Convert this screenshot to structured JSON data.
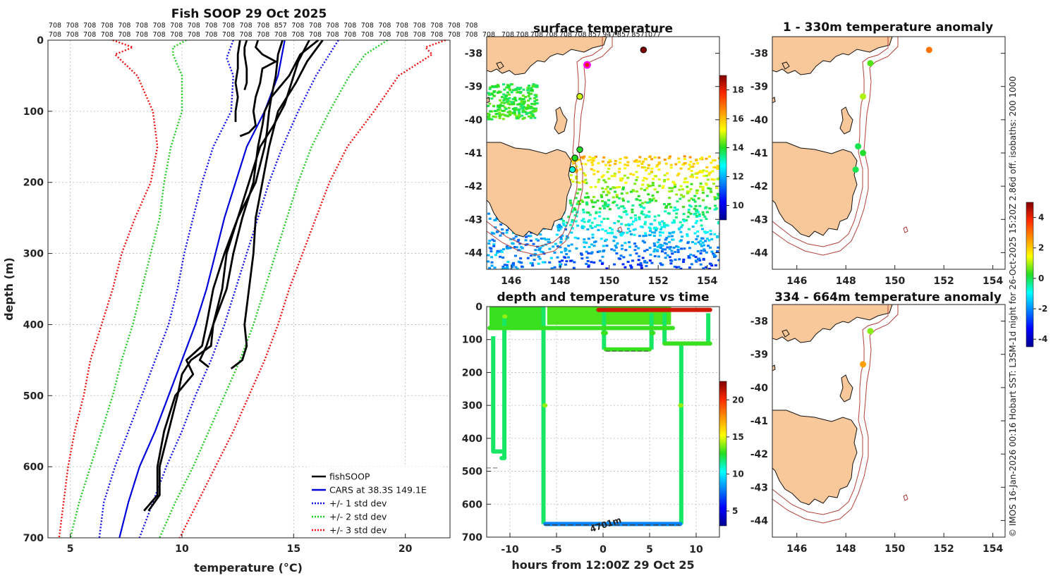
{
  "chart_data": [
    {
      "id": "profile",
      "type": "line",
      "title": "Fish SOOP 29 Oct 2025",
      "xlabel": "temperature (°C)",
      "ylabel": "depth (m)",
      "xlim": [
        4,
        22
      ],
      "ylim": [
        700,
        0
      ],
      "xticks": [
        "5",
        "10",
        "15",
        "20"
      ],
      "yticks": [
        "0",
        "100",
        "200",
        "300",
        "400",
        "500",
        "600",
        "700"
      ],
      "grid": true,
      "legend_location": "bottom-right",
      "legend": [
        "fishSOOP",
        "CARS at 38.3S 149.1E",
        "+/- 1 std dev",
        "+/- 2 std dev",
        "+/- 3 std dev"
      ],
      "id_labels_row1": [
        "708",
        "708",
        "708",
        "708",
        "708",
        "708",
        "708",
        "708",
        "708",
        "708",
        "708",
        "708",
        "708",
        "857",
        "708",
        "708",
        "708",
        "708",
        "708",
        "708",
        "708",
        "708",
        "708",
        "708",
        "708"
      ],
      "id_labels_row2": [
        "708",
        "708",
        "708",
        "708",
        "708",
        "708",
        "708",
        "708",
        "708",
        "708",
        "708",
        "708",
        "708",
        "708",
        "708",
        "708",
        "708",
        "708",
        "708",
        "708",
        "708",
        "708",
        "708",
        "708",
        "708",
        "708"
      ],
      "series": [
        {
          "name": "CARS at 38.3S 149.1E",
          "color": "#0000dd",
          "style": "solid",
          "depth": [
            0,
            50,
            100,
            150,
            200,
            250,
            300,
            350,
            400,
            450,
            500,
            550,
            600,
            650,
            700
          ],
          "temp": [
            14.6,
            14.3,
            13.7,
            12.9,
            12.4,
            11.9,
            11.5,
            11.1,
            10.6,
            10.0,
            9.4,
            8.8,
            8.1,
            7.6,
            7.2
          ]
        },
        {
          "name": "+1 std dev",
          "color": "#1010ee",
          "style": "dot",
          "depth": [
            0,
            50,
            100,
            150,
            200,
            250,
            300,
            350,
            400,
            450,
            500,
            550,
            600,
            650,
            700
          ],
          "temp": [
            17.0,
            16.0,
            15.2,
            14.5,
            13.9,
            13.4,
            12.9,
            12.4,
            11.9,
            11.3,
            10.6,
            10.0,
            9.3,
            8.7,
            8.1
          ]
        },
        {
          "name": "-1 std dev",
          "color": "#1010ee",
          "style": "dot",
          "depth": [
            0,
            25,
            50,
            100,
            150,
            200,
            250,
            300,
            350,
            400,
            450,
            500,
            550,
            600,
            650,
            700
          ],
          "temp": [
            12.3,
            12.0,
            12.3,
            12.2,
            11.4,
            10.9,
            10.5,
            10.1,
            9.8,
            9.4,
            8.8,
            8.2,
            7.6,
            7.0,
            6.5,
            6.3
          ]
        },
        {
          "name": "+2 std dev",
          "color": "#22cc22",
          "style": "dot",
          "depth": [
            0,
            10,
            20,
            50,
            100,
            150,
            200,
            250,
            300,
            350,
            400,
            450,
            500,
            550,
            600,
            650,
            700
          ],
          "temp": [
            19.2,
            18.7,
            18.2,
            17.5,
            16.6,
            15.8,
            15.2,
            14.7,
            14.2,
            13.7,
            13.2,
            12.6,
            11.9,
            11.2,
            10.5,
            9.7,
            9.0
          ]
        },
        {
          "name": "-2 std dev",
          "color": "#22cc22",
          "style": "dot",
          "depth": [
            0,
            10,
            20,
            50,
            100,
            150,
            200,
            250,
            300,
            350,
            400,
            450,
            500,
            550,
            600,
            650,
            700
          ],
          "temp": [
            10.2,
            9.6,
            9.6,
            10.0,
            10.0,
            9.5,
            9.2,
            9.0,
            8.6,
            8.2,
            7.8,
            7.3,
            6.9,
            6.4,
            5.9,
            5.4,
            5.0
          ]
        },
        {
          "name": "+3 std dev",
          "color": "#ee1111",
          "style": "dot",
          "depth": [
            0,
            10,
            20,
            50,
            100,
            150,
            200,
            250,
            300,
            350,
            400,
            450,
            500,
            550,
            600,
            650,
            700
          ],
          "temp": [
            21.8,
            20.9,
            21.2,
            19.7,
            18.6,
            17.4,
            16.6,
            16.0,
            15.4,
            14.8,
            14.3,
            13.7,
            13.0,
            12.3,
            11.5,
            10.7,
            9.9
          ]
        },
        {
          "name": "-3 std dev",
          "color": "#ee1111",
          "style": "dot",
          "depth": [
            0,
            10,
            20,
            50,
            100,
            150,
            200,
            250,
            300,
            350,
            400,
            450,
            500,
            550,
            600,
            650,
            700
          ],
          "temp": [
            6.9,
            7.8,
            7.0,
            8.0,
            8.7,
            8.9,
            8.6,
            7.9,
            7.3,
            6.9,
            6.4,
            5.9,
            5.6,
            5.2,
            4.9,
            4.7,
            4.5
          ]
        },
        {
          "name": "fishSOOP cast 1",
          "color": "#000000",
          "style": "solid",
          "depth": [
            0,
            20,
            40,
            60,
            80,
            100,
            115
          ],
          "temp": [
            12.6,
            12.5,
            12.5,
            12.4,
            12.5,
            12.4,
            12.4
          ]
        },
        {
          "name": "fishSOOP cast 2",
          "color": "#000000",
          "style": "solid",
          "depth": [
            0,
            10,
            20,
            40,
            60,
            70
          ],
          "temp": [
            12.9,
            12.8,
            12.8,
            12.9,
            12.9,
            12.8
          ]
        },
        {
          "name": "fishSOOP cast 3",
          "color": "#000000",
          "style": "solid",
          "depth": [
            0,
            10,
            20,
            30,
            40,
            60,
            80,
            100,
            120,
            130,
            135
          ],
          "temp": [
            13.4,
            13.3,
            13.6,
            14.2,
            13.6,
            13.5,
            13.3,
            13.2,
            13.3,
            13.0,
            12.6
          ]
        },
        {
          "name": "fishSOOP cast 4",
          "color": "#000000",
          "style": "solid",
          "depth": [
            0,
            20,
            50,
            80,
            100,
            120,
            150,
            200,
            250,
            300,
            350,
            400,
            430,
            450,
            460
          ],
          "temp": [
            14.5,
            14.3,
            14.2,
            14.0,
            13.7,
            13.6,
            13.4,
            13.2,
            12.7,
            12.3,
            12.0,
            11.4,
            11.1,
            10.8,
            11.2
          ]
        },
        {
          "name": "fishSOOP cast 5",
          "color": "#000000",
          "style": "solid",
          "depth": [
            0,
            20,
            50,
            80,
            100,
            130,
            150,
            200,
            250,
            300,
            350,
            400,
            430,
            450,
            470,
            500,
            550,
            600,
            640,
            662
          ],
          "temp": [
            16.1,
            15.3,
            14.8,
            14.0,
            13.9,
            13.8,
            13.7,
            13.3,
            12.5,
            11.9,
            11.4,
            11.1,
            10.9,
            10.2,
            10.5,
            9.7,
            9.2,
            8.9,
            8.9,
            8.3
          ]
        },
        {
          "name": "fishSOOP cast 6",
          "color": "#000000",
          "style": "solid",
          "depth": [
            0,
            30,
            60,
            90,
            120,
            150,
            200,
            250,
            300,
            350,
            400,
            430,
            450,
            470,
            500,
            550,
            600,
            640,
            662
          ],
          "temp": [
            15.7,
            15.2,
            14.9,
            14.6,
            14.1,
            13.5,
            13.0,
            12.5,
            12.0,
            11.8,
            11.4,
            11.3,
            10.4,
            10.0,
            9.8,
            9.4,
            9.0,
            9.0,
            8.5
          ]
        },
        {
          "name": "fishSOOP cast 7",
          "color": "#000000",
          "style": "solid",
          "depth": [
            0,
            30,
            60,
            100,
            150,
            200,
            250,
            300,
            350,
            400,
            430,
            450,
            462
          ],
          "temp": [
            16.3,
            15.6,
            15.1,
            14.3,
            13.9,
            13.6,
            13.3,
            13.2,
            13.0,
            12.8,
            12.9,
            12.7,
            12.2
          ]
        }
      ]
    },
    {
      "id": "sst_map",
      "type": "scatter",
      "title": "surface temperature",
      "xticks": [
        "146",
        "148",
        "150",
        "152",
        "154"
      ],
      "yticks": [
        "-38",
        "-39",
        "-40",
        "-41",
        "-42",
        "-43",
        "-44"
      ],
      "xlim": [
        145,
        154.5
      ],
      "ylim": [
        -44.5,
        -37.5
      ],
      "colorbar_ticks": [
        "10",
        "12",
        "14",
        "16",
        "18"
      ],
      "colorbar_range": [
        9,
        19
      ],
      "top_labels": [
        "708",
        "708",
        "708",
        "708",
        "708",
        "708",
        "857",
        "947",
        "857",
        "857",
        "1077"
      ],
      "points": [
        {
          "lon": 151.4,
          "lat": -37.9,
          "value": 19,
          "edge": "#000000"
        },
        {
          "lon": 149.1,
          "lat": -38.35,
          "value": 18,
          "edge": "#ff00ff"
        },
        {
          "lon": 148.8,
          "lat": -39.3,
          "value": 15,
          "edge": "#000000"
        },
        {
          "lon": 148.8,
          "lat": -40.9,
          "value": 14,
          "edge": "#000000"
        },
        {
          "lon": 148.6,
          "lat": -41.15,
          "value": 14,
          "edge": "#000000"
        },
        {
          "lon": 148.5,
          "lat": -41.5,
          "value": 13,
          "edge": "#000000"
        }
      ]
    },
    {
      "id": "depth_time",
      "type": "scatter",
      "title": "depth and temperature vs time",
      "xlabel": "hours from 12:00Z 29 Oct 25",
      "xlim": [
        -12.5,
        12.5
      ],
      "ylim": [
        700,
        0
      ],
      "xticks": [
        "-10",
        "-5",
        "0",
        "5",
        "10"
      ],
      "yticks": [
        "0",
        "100",
        "200",
        "300",
        "400",
        "500",
        "600",
        "700"
      ],
      "colorbar_ticks": [
        "5",
        "10",
        "15",
        "20"
      ],
      "colorbar_range": [
        3,
        22.5
      ],
      "annotation": "4701m",
      "segments": [
        {
          "t0": -12.2,
          "t1": 7.5,
          "depth": 65,
          "value": 13
        },
        {
          "t0": -11.8,
          "t1": -10.9,
          "depth": 440,
          "value": 12
        },
        {
          "t0": -10.9,
          "t1": -10.6,
          "depth": 460,
          "value": 12
        },
        {
          "t0": -10.6,
          "t1": -10.5,
          "depth": 30,
          "value": 14
        },
        {
          "t0": -6.3,
          "t1": -6.2,
          "depth": 300,
          "value": 14
        },
        {
          "t0": -6.2,
          "t1": 8.3,
          "depth": 660,
          "value": 8
        },
        {
          "t0": 8.3,
          "t1": 8.4,
          "depth": 300,
          "value": 14
        },
        {
          "t0": 0.3,
          "t1": 5.0,
          "depth": 130,
          "value": 13
        },
        {
          "t0": 0.0,
          "t1": 0.3,
          "depth": 80,
          "value": 13
        },
        {
          "t0": 5.2,
          "t1": 5.4,
          "depth": 80,
          "value": 13
        },
        {
          "t0": 6.6,
          "t1": 11.5,
          "depth": 112,
          "value": 13
        },
        {
          "t0": -0.5,
          "t1": 11.5,
          "depth": 10,
          "value": 21
        }
      ]
    },
    {
      "id": "anomaly_1",
      "type": "scatter",
      "title": "1 - 330m temperature anomaly",
      "xticks": [
        "146",
        "148",
        "150",
        "152",
        "154"
      ],
      "yticks": [
        "-38",
        "-39",
        "-40",
        "-41",
        "-42",
        "-43",
        "-44"
      ],
      "points": [
        {
          "lon": 151.4,
          "lat": -37.9,
          "value": 3
        },
        {
          "lon": 149.0,
          "lat": -38.3,
          "value": 0.5
        },
        {
          "lon": 148.7,
          "lat": -39.3,
          "value": 1
        },
        {
          "lon": 148.5,
          "lat": -40.8,
          "value": 0
        },
        {
          "lon": 148.7,
          "lat": -41.0,
          "value": 0.2
        },
        {
          "lon": 148.4,
          "lat": -41.5,
          "value": 0
        }
      ]
    },
    {
      "id": "anomaly_2",
      "type": "scatter",
      "title": "334 - 664m temperature anomaly",
      "xticks": [
        "146",
        "148",
        "150",
        "152",
        "154"
      ],
      "yticks": [
        "-38",
        "-39",
        "-40",
        "-41",
        "-42",
        "-43",
        "-44"
      ],
      "points": [
        {
          "lon": 149.0,
          "lat": -38.3,
          "value": 0.8
        },
        {
          "lon": 148.7,
          "lat": -39.3,
          "value": 2.5
        }
      ],
      "colorbar_ticks": [
        "4",
        "2",
        "0",
        "-2",
        "-4"
      ],
      "colorbar_range": [
        -4.5,
        5
      ]
    }
  ],
  "side_caption": "© IMOS 16-Jan-2026 00:16 Hobart SST: L3SM-1d night for 26-Oct-2025 15:20Z 2.86d off. isobaths: 200  1000"
}
